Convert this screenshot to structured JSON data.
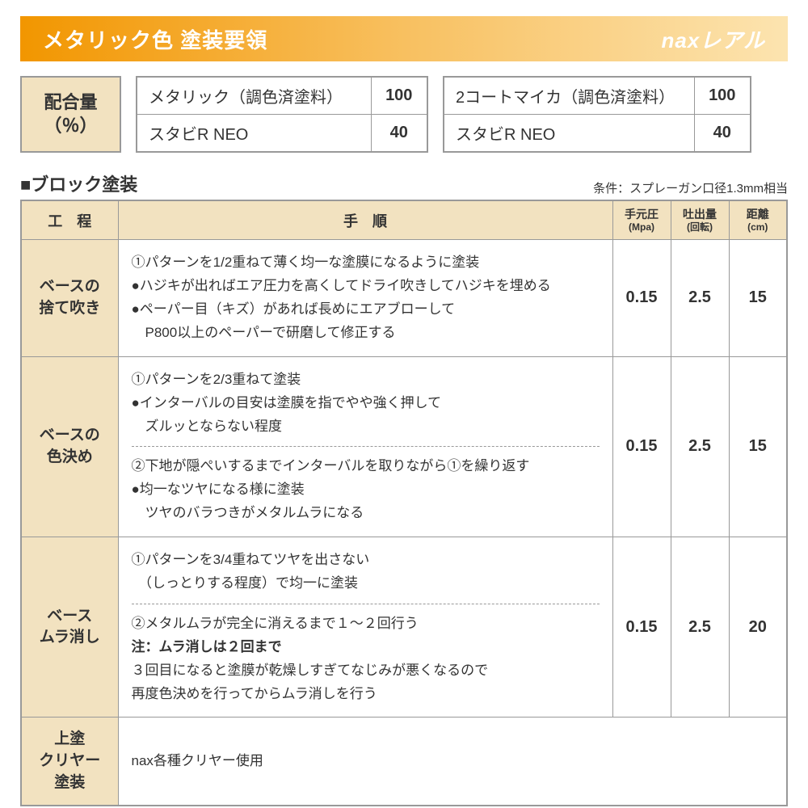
{
  "header": {
    "title": "メタリック色 塗装要領",
    "brand": "naxレアル"
  },
  "mix": {
    "label_line1": "配合量",
    "label_line2": "（％）",
    "table1": {
      "r1_name": "メタリック（調色済塗料）",
      "r1_val": "100",
      "r2_name": "スタビR NEO",
      "r2_val": "40"
    },
    "table2": {
      "r1_name": "2コートマイカ（調色済塗料）",
      "r1_val": "100",
      "r2_name": "スタビR NEO",
      "r2_val": "40"
    }
  },
  "section_title": "■ブロック塗装",
  "condition": "条件：スプレーガン口径1.3mm相当",
  "proc_headers": {
    "c1": "工　程",
    "c2": "手　順",
    "c3": "手元圧",
    "c3_sub": "(Mpa)",
    "c4": "吐出量",
    "c4_sub": "(回転)",
    "c5": "距離",
    "c5_sub": "(cm)"
  },
  "rows": {
    "r1": {
      "name": "ベースの\n捨て吹き",
      "line1": "①パターンを1/2重ねて薄く均一な塗膜になるように塗装",
      "line2": "●ハジキが出ればエア圧力を高くしてドライ吹きしてハジキを埋める",
      "line3": "●ペーパー目（キズ）があれば長めにエアブローして",
      "line4": "　P800以上のペーパーで研磨して修正する",
      "mpa": "0.15",
      "rot": "2.5",
      "dist": "15"
    },
    "r2": {
      "name": "ベースの\n色決め",
      "p1_l1": "①パターンを2/3重ねて塗装",
      "p1_l2": "●インターバルの目安は塗膜を指でやや強く押して",
      "p1_l3": "　ズルッとならない程度",
      "p2_l1": "②下地が隠ぺいするまでインターバルを取りながら①を繰り返す",
      "p2_l2": "●均一なツヤになる様に塗装",
      "p2_l3": "　ツヤのバラつきがメタルムラになる",
      "mpa": "0.15",
      "rot": "2.5",
      "dist": "15"
    },
    "r3": {
      "name": "ベース\nムラ消し",
      "p1_l1": "①パターンを3/4重ねてツヤを出さない",
      "p1_l2": "　（しっとりする程度）で均一に塗装",
      "p2_l1": "②メタルムラが完全に消えるまで１〜２回行う",
      "p2_l2": "注：ムラ消しは２回まで",
      "p2_l3": "３回目になると塗膜が乾燥しすぎてなじみが悪くなるので",
      "p2_l4": "再度色決めを行ってからムラ消しを行う",
      "mpa": "0.15",
      "rot": "2.5",
      "dist": "20"
    },
    "r4": {
      "name": "上塗\nクリヤー塗装",
      "line1": "nax各種クリヤー使用"
    }
  },
  "colors": {
    "header_grad_from": "#f29600",
    "header_grad_to": "#fce4b0",
    "cell_bg": "#f2e2c0",
    "border": "#999999",
    "text": "#333333",
    "bg": "#ffffff"
  }
}
